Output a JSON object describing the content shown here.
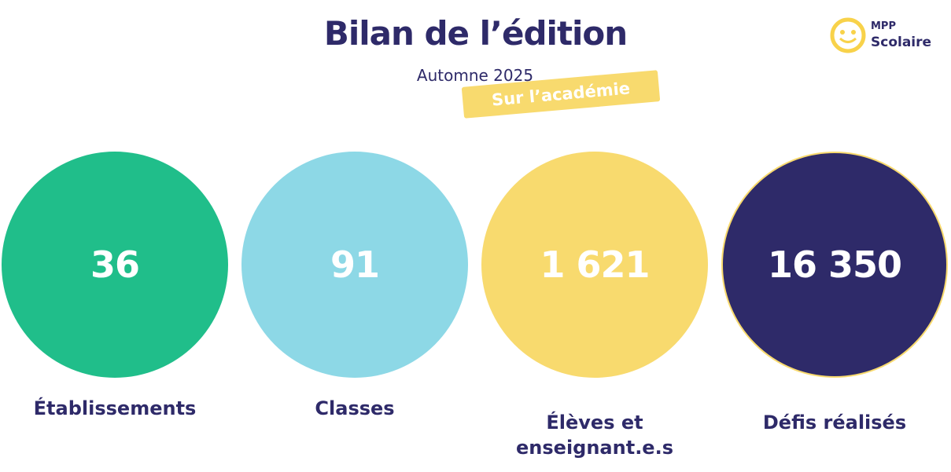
{
  "header": {
    "title": "Bilan de l’édition",
    "subtitle": "Automne 2025",
    "badge": "Sur l’académie"
  },
  "logo": {
    "line1": "MPP",
    "line2": "Scolaire"
  },
  "stats": [
    {
      "value": "36",
      "label": "Établissements"
    },
    {
      "value": "91",
      "label": "Classes"
    },
    {
      "value": "1 621",
      "label": "Élèves et enseignant.e.s"
    },
    {
      "value": "16 350",
      "label": "Défis réalisés"
    }
  ]
}
